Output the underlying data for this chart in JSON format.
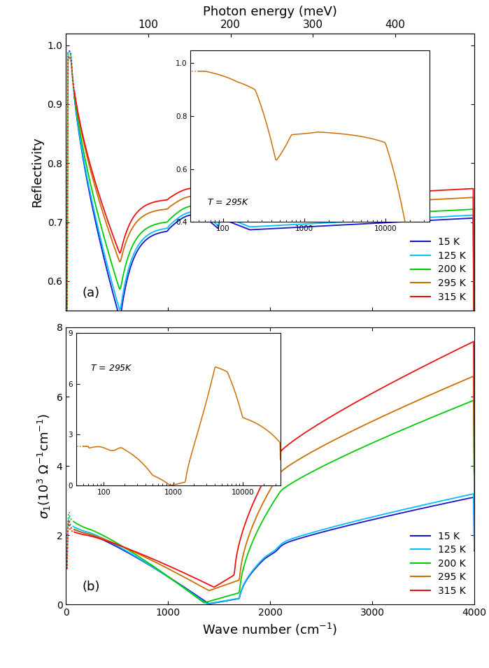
{
  "colors": {
    "15K": "#1515CD",
    "125K": "#00BFFF",
    "200K": "#00CC00",
    "295K": "#CC7000",
    "315K": "#EE1111"
  },
  "legend_labels": [
    "15 K",
    "125 K",
    "200 K",
    "295 K",
    "315 K"
  ],
  "top_xlabel": "Photon energy (meV)",
  "bottom_xlabel": "Wave number (cm$^{-1}$)",
  "ylabel_a": "Reflectivity",
  "ylabel_b": "$\\sigma_1$(10$^3$ $\\Omega^{-1}$cm$^{-1}$)",
  "xlim": [
    0,
    4000
  ],
  "ylim_a": [
    0.55,
    1.02
  ],
  "ylim_b": [
    0,
    8
  ],
  "inset_a_text": "$T$ = 295K",
  "inset_b_text": "$T$ = 295K"
}
